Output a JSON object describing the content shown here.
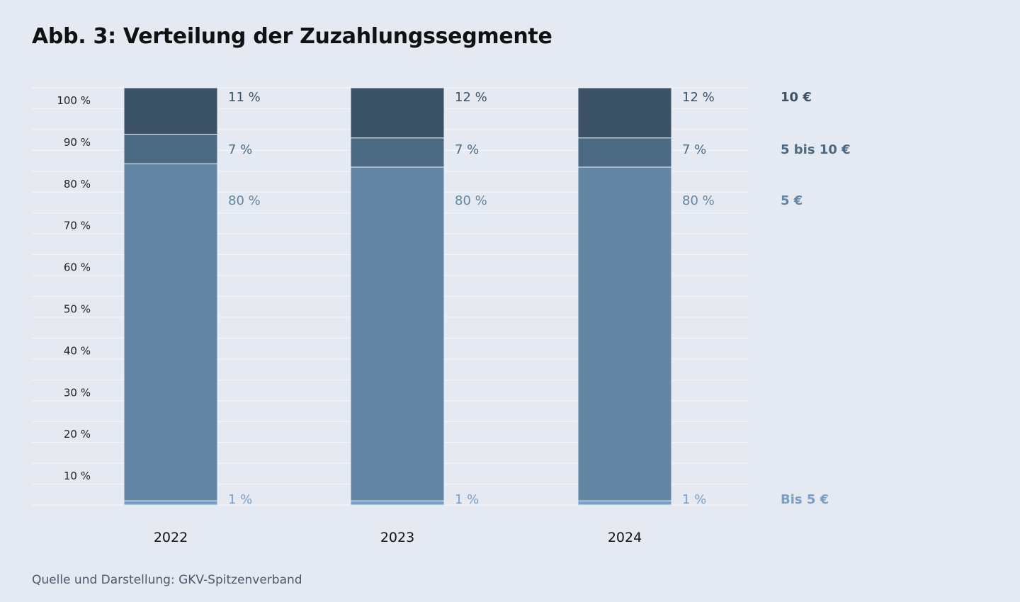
{
  "chart_data": {
    "type": "bar",
    "stacked": true,
    "title": "Abb. 3: Verteilung der Zuzahlungssegmente",
    "categories": [
      "2022",
      "2023",
      "2024"
    ],
    "series": [
      {
        "name": "Bis 5 €",
        "values": [
          1,
          1,
          1
        ],
        "labels": [
          "1 %",
          "1 %",
          "1 %"
        ],
        "color": "#7a9fc4"
      },
      {
        "name": "5 €",
        "values": [
          80,
          80,
          80
        ],
        "labels": [
          "80 %",
          "80 %",
          "80 %"
        ],
        "color": "#6286a4"
      },
      {
        "name": "5 bis 10 €",
        "values": [
          7,
          7,
          7
        ],
        "labels": [
          "7 %",
          "7 %",
          "7 %"
        ],
        "color": "#4c6a83"
      },
      {
        "name": "10 €",
        "values": [
          11,
          12,
          12
        ],
        "labels": [
          "11 %",
          "12 %",
          "12 %"
        ],
        "color": "#3b5166"
      }
    ],
    "yticks": [
      "10 %",
      "20 %",
      "30 %",
      "40 %",
      "50 %",
      "60 %",
      "70 %",
      "80 %",
      "90 %",
      "100 %"
    ],
    "ylim": [
      0,
      100
    ],
    "grid": true,
    "legend": "right"
  },
  "source": "Quelle und Darstellung: GKV-Spitzenverband"
}
